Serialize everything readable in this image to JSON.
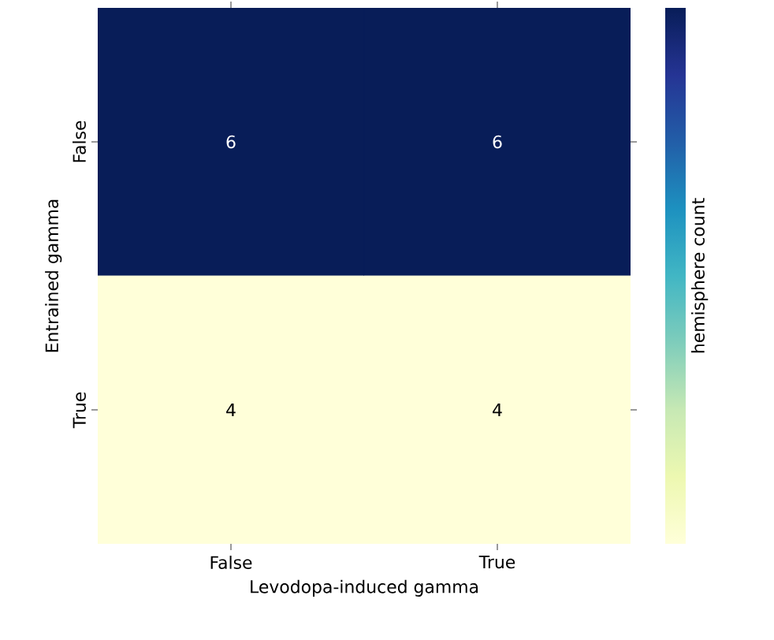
{
  "chart_data": {
    "type": "heatmap",
    "categories": [
      "False",
      "True"
    ],
    "y_categories": [
      "False",
      "True"
    ],
    "cells": [
      [
        6,
        6
      ],
      [
        4,
        4
      ]
    ],
    "xlabel": "Levodopa-induced gamma",
    "ylabel": "Entrained gamma",
    "clabel": "hemisphere count",
    "data_labels": true
  }
}
